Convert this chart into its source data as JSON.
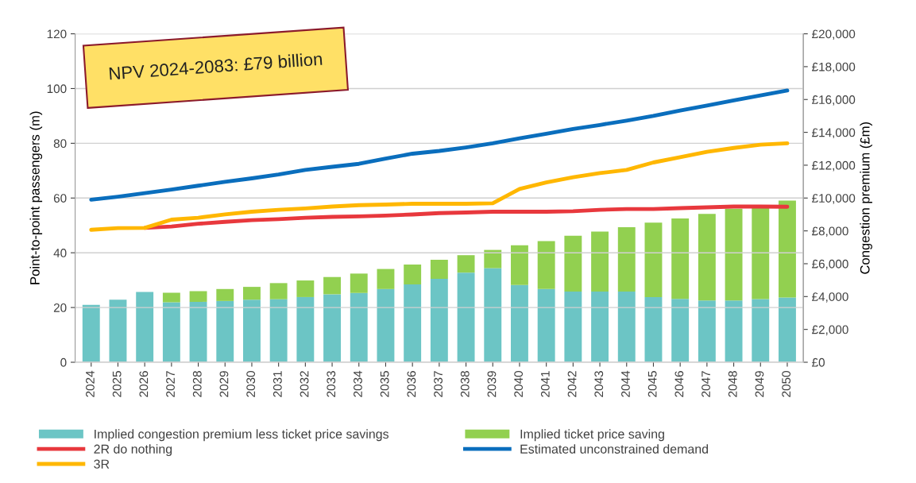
{
  "chart_data": {
    "type": "bar",
    "stacked": true,
    "categories": [
      "2024",
      "2025",
      "2026",
      "2027",
      "2028",
      "2029",
      "2030",
      "2031",
      "2032",
      "2033",
      "2034",
      "2035",
      "2036",
      "2037",
      "2038",
      "2039",
      "2040",
      "2041",
      "2042",
      "2043",
      "2044",
      "2045",
      "2046",
      "2047",
      "2048",
      "2049",
      "2050"
    ],
    "ylabel": "Point-to-point passengers (m)",
    "y2label": "Congestion premium (£m)",
    "ylim": [
      0,
      120
    ],
    "yticks": [
      0,
      20,
      40,
      60,
      80,
      100,
      120
    ],
    "y2lim": [
      0,
      20000
    ],
    "y2ticks": [
      {
        "value": 0,
        "label": "£0"
      },
      {
        "value": 2000,
        "label": "£2,000"
      },
      {
        "value": 4000,
        "label": "£4,000"
      },
      {
        "value": 6000,
        "label": "£6,000"
      },
      {
        "value": 8000,
        "label": "£8,000"
      },
      {
        "value": 10000,
        "label": "£10,000"
      },
      {
        "value": 12000,
        "label": "£12,000"
      },
      {
        "value": 14000,
        "label": "£14,000"
      },
      {
        "value": 16000,
        "label": "£16,000"
      },
      {
        "value": 18000,
        "label": "£18,000"
      },
      {
        "value": 20000,
        "label": "£20,000"
      }
    ],
    "grid": "y",
    "legend": "bottom",
    "annotations": [
      "NPV 2024-2083: £79 billion"
    ],
    "series": [
      {
        "name": "Implied congestion premium less ticket price savings",
        "axis": "y2",
        "color": "#6cc5c5",
        "values": [
          3490,
          3810,
          4280,
          3650,
          3680,
          3730,
          3810,
          3840,
          3970,
          4140,
          4220,
          4460,
          4740,
          5080,
          5460,
          5730,
          4700,
          4460,
          4300,
          4300,
          4300,
          3970,
          3860,
          3760,
          3760,
          3840,
          3940
        ]
      },
      {
        "name": "Implied ticket price saving",
        "axis": "y2",
        "color": "#92d050",
        "values": [
          null,
          null,
          null,
          580,
          650,
          730,
          780,
          980,
          1010,
          1050,
          1180,
          1220,
          1210,
          1160,
          1060,
          1110,
          2420,
          2920,
          3400,
          3660,
          3920,
          4530,
          4900,
          5280,
          5590,
          5610,
          5900
        ]
      },
      {
        "name": "2R do nothing",
        "type": "line",
        "axis": "y",
        "color": "#e8383d",
        "values": [
          null,
          null,
          49.1,
          49.6,
          50.6,
          51.3,
          51.9,
          52.3,
          52.8,
          53.1,
          53.3,
          53.6,
          54,
          54.5,
          54.7,
          55,
          55,
          55,
          55.2,
          55.7,
          56,
          56,
          56.3,
          56.6,
          56.9,
          56.9,
          56.8
        ]
      },
      {
        "name": "Estimated unconstrained demand",
        "type": "line",
        "axis": "y",
        "color": "#0a6ebd",
        "values": [
          59.4,
          60.5,
          61.8,
          63.1,
          64.5,
          65.9,
          67.2,
          68.6,
          70.3,
          71.4,
          72.5,
          74.4,
          76.2,
          77.2,
          78.5,
          80,
          81.8,
          83.5,
          85.2,
          86.7,
          88.3,
          90,
          92,
          93.8,
          95.7,
          97.5,
          99.3
        ]
      },
      {
        "name": "3R",
        "type": "line",
        "axis": "y",
        "color": "#ffb700",
        "values": [
          48.4,
          49,
          49.1,
          52.1,
          52.8,
          54,
          55,
          55.7,
          56.2,
          56.9,
          57.4,
          57.6,
          57.9,
          57.9,
          57.9,
          58.1,
          63.3,
          65.7,
          67.6,
          69.1,
          70.3,
          73,
          74.9,
          76.9,
          78.3,
          79.5,
          80
        ]
      }
    ]
  }
}
